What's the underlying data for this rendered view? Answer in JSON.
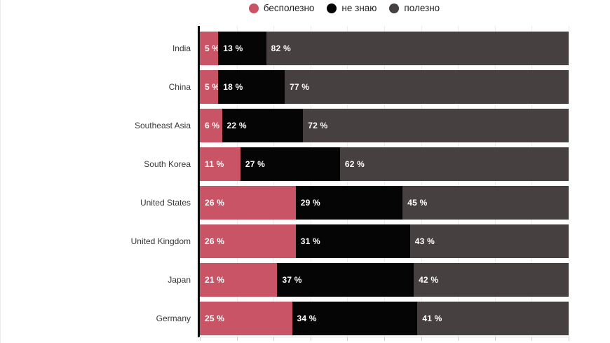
{
  "chart_data": {
    "type": "bar",
    "orientation": "horizontal",
    "stacked": true,
    "title": "",
    "xlabel": "",
    "ylabel": "",
    "xlim": [
      0,
      100
    ],
    "grid": "vertical gridlines every 10%",
    "legend_position": "top-center",
    "value_suffix": " %",
    "categories": [
      "India",
      "China",
      "Southeast Asia",
      "South Korea",
      "United States",
      "United Kingdom",
      "Japan",
      "Germany"
    ],
    "series": [
      {
        "key": "useless",
        "name": "бесполезно",
        "color": "#c85466",
        "values": [
          5,
          5,
          6,
          11,
          26,
          26,
          21,
          25
        ]
      },
      {
        "key": "dont-know",
        "name": "не знаю",
        "color": "#050505",
        "values": [
          13,
          18,
          22,
          27,
          29,
          31,
          37,
          34
        ]
      },
      {
        "key": "useful",
        "name": "полезно",
        "color": "#464040",
        "values": [
          82,
          77,
          72,
          62,
          45,
          43,
          42,
          41
        ]
      }
    ]
  },
  "colors": {
    "axis": "#0a0a0a",
    "gridline": "#ededed",
    "bar_label_text": "#ffffff",
    "category_label_text": "#383838"
  }
}
